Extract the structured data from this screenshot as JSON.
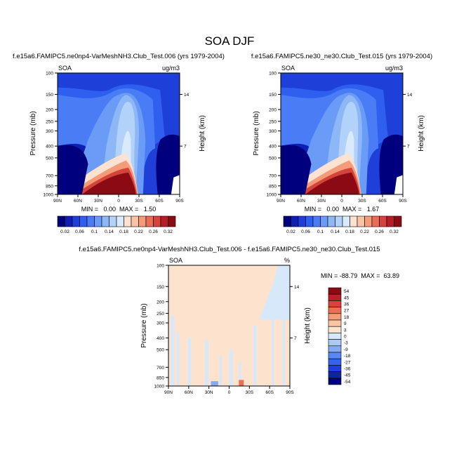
{
  "figure": {
    "title": "SOA DJF"
  },
  "colors": {
    "soa": [
      "#00007f",
      "#0f1fb4",
      "#1e40d8",
      "#2f5fef",
      "#4a7cf5",
      "#6a9cf7",
      "#8db7f7",
      "#b3d2f9",
      "#d9eafc",
      "#fde2d1",
      "#fbc3a6",
      "#f49b7a",
      "#e86e55",
      "#d4443a",
      "#b51e27",
      "#8b0a13"
    ],
    "diff": [
      "#00007f",
      "#10249c",
      "#1e40d8",
      "#3562ee",
      "#5a87f3",
      "#84aaf4",
      "#abc9f7",
      "#d7e8fb",
      "#fde3cd",
      "#fbc4a4",
      "#f59d77",
      "#e97052",
      "#d7453a",
      "#b9202a",
      "#8b0a13"
    ]
  },
  "chart_data": [
    {
      "type": "heatmap",
      "title": "f.e15a6.FAMIPC5.ne0np4-VarMeshNH3.Club_Test.006 (yrs 1979-2004)",
      "left_label": "SOA",
      "right_label": "ug/m3",
      "ylabel": "Pressure (mb)",
      "ylabel_right": "Height (km)",
      "x_ticks": [
        "90N",
        "60N",
        "30N",
        "0",
        "30S",
        "60S",
        "90S"
      ],
      "y_ticks": [
        "100",
        "150",
        "200",
        "250",
        "300",
        "400",
        "500",
        "700",
        "850",
        "1000"
      ],
      "y_ticks_right": [
        "14",
        "7"
      ],
      "xlim": [
        90,
        -90
      ],
      "ylim": [
        1000,
        100
      ],
      "min_max": "MIN =   0.00  MAX =   1.50",
      "colorbar_levels": [
        "0.02",
        "0.06",
        "0.1",
        "0.14",
        "0.18",
        "0.22",
        "0.26",
        "0.32"
      ]
    },
    {
      "type": "heatmap",
      "title": "f.e15a6.FAMIPC5.ne30_ne30.Club_Test.015 (yrs 1979-2004)",
      "left_label": "SOA",
      "right_label": "ug/m3",
      "ylabel": "Pressure (mb)",
      "ylabel_right": "Height (km)",
      "x_ticks": [
        "90N",
        "60N",
        "30N",
        "0",
        "30S",
        "60S",
        "90S"
      ],
      "y_ticks": [
        "100",
        "150",
        "200",
        "250",
        "300",
        "400",
        "500",
        "700",
        "850",
        "1000"
      ],
      "y_ticks_right": [
        "14",
        "7"
      ],
      "xlim": [
        90,
        -90
      ],
      "ylim": [
        1000,
        100
      ],
      "min_max": "MIN =   0.00  MAX =   1.67",
      "colorbar_levels": [
        "0.02",
        "0.06",
        "0.1",
        "0.14",
        "0.18",
        "0.22",
        "0.26",
        "0.32"
      ]
    },
    {
      "type": "heatmap",
      "title": "f.e15a6.FAMIPC5.ne0np4-VarMeshNH3.Club_Test.006 - f.e15a6.FAMIPC5.ne30_ne30.Club_Test.015",
      "left_label": "SOA",
      "right_label": "%",
      "ylabel": "Pressure (mb)",
      "ylabel_right": "Height (km)",
      "x_ticks": [
        "90N",
        "60N",
        "30N",
        "0",
        "30S",
        "60S",
        "90S"
      ],
      "y_ticks": [
        "100",
        "150",
        "200",
        "250",
        "300",
        "400",
        "500",
        "700",
        "850",
        "1000"
      ],
      "y_ticks_right": [
        "14",
        "7"
      ],
      "xlim": [
        90,
        -90
      ],
      "ylim": [
        1000,
        100
      ],
      "min_max": "MIN = -88.79  MAX =  63.89",
      "colorbar_levels": [
        "54",
        "45",
        "36",
        "27",
        "18",
        "9",
        "3",
        "0",
        "-3",
        "-9",
        "-18",
        "-27",
        "-36",
        "-45",
        "-54"
      ]
    }
  ]
}
